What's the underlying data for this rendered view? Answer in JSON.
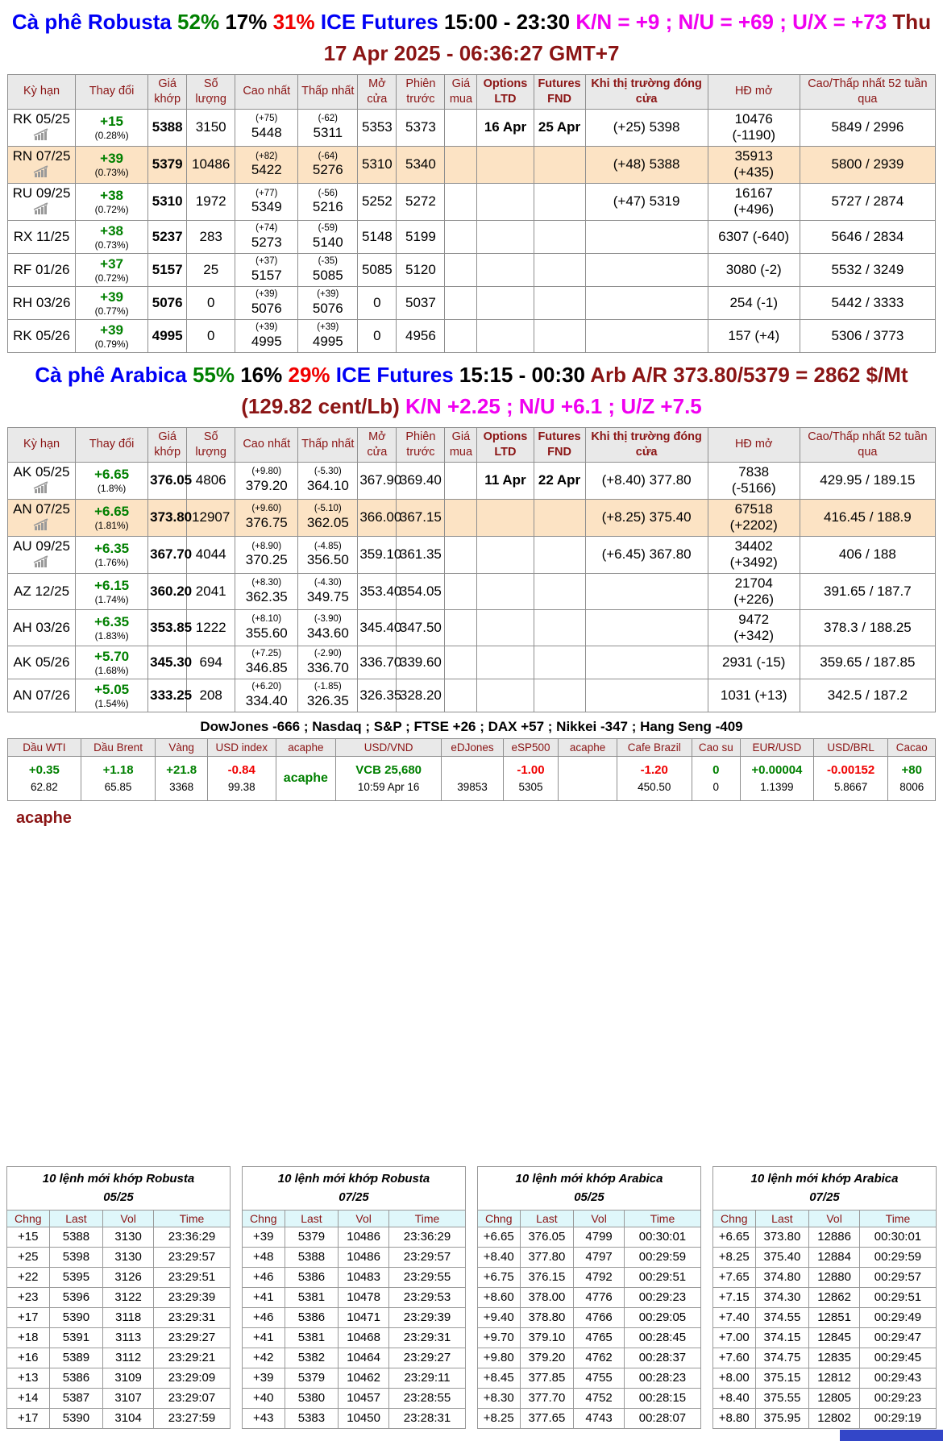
{
  "robusta_header": {
    "segments": [
      {
        "t": "Cà phê Robusta",
        "c": "blue"
      },
      {
        "t": " 52%",
        "c": "green"
      },
      {
        "t": " 17% ",
        "c": "black"
      },
      {
        "t": "31% ",
        "c": "red"
      },
      {
        "t": "ICE Futures",
        "c": "blue"
      },
      {
        "t": " 15:00 - 23:30 ",
        "c": "black"
      },
      {
        "t": "K/N = +9 ; N/U = +69 ; U/X = +73",
        "c": "magenta"
      },
      {
        "t": " Thu 17 Apr 2025 - 06:36:27 GMT+7",
        "c": "darkred"
      }
    ]
  },
  "arabica_header": {
    "segments": [
      {
        "t": "Cà phê Arabica",
        "c": "blue"
      },
      {
        "t": " 55%",
        "c": "green"
      },
      {
        "t": " 16% ",
        "c": "black"
      },
      {
        "t": "29% ",
        "c": "red"
      },
      {
        "t": "ICE Futures",
        "c": "blue"
      },
      {
        "t": " 15:15 - 00:30 ",
        "c": "black"
      },
      {
        "t": "Arb A/R 373.80/5379 = 2862 $/Mt (129.82 cent/Lb)",
        "c": "darkred"
      },
      {
        "t": " K/N +2.25 ; N/U +6.1 ; U/Z +7.5",
        "c": "magenta"
      }
    ]
  },
  "futures_headers": [
    "Kỳ hạn",
    "Thay đổi",
    "Giá khớp",
    "Số lượng",
    "Cao nhất",
    "Thấp nhất",
    "Mở cửa",
    "Phiên trước",
    "Giá mua",
    "Options LTD",
    "Futures FND",
    "Khi thị trường đóng cửa",
    "HĐ mở",
    "Cao/Thấp nhất 52 tuần qua"
  ],
  "robusta": {
    "rows": [
      {
        "m": "RK 05/25",
        "ic": true,
        "chg": "+15",
        "pct": "(0.28%)",
        "last": "5388",
        "vol": "3150",
        "hid": "(+75)",
        "hi": "5448",
        "lod": "(-62)",
        "lo": "5311",
        "op": "5353",
        "pr": "5373",
        "buy": "",
        "oltd": "16 Apr",
        "ffnd": "25 Apr",
        "cls": "(+25) 5398",
        "oi": "10476\n(-1190)",
        "rng": "5849 / 2996",
        "hl": false
      },
      {
        "m": "RN 07/25",
        "ic": true,
        "chg": "+39",
        "pct": "(0.73%)",
        "last": "5379",
        "vol": "10486",
        "hid": "(+82)",
        "hi": "5422",
        "lod": "(-64)",
        "lo": "5276",
        "op": "5310",
        "pr": "5340",
        "buy": "",
        "oltd": "",
        "ffnd": "",
        "cls": "(+48) 5388",
        "oi": "35913\n(+435)",
        "rng": "5800 / 2939",
        "hl": true
      },
      {
        "m": "RU 09/25",
        "ic": true,
        "chg": "+38",
        "pct": "(0.72%)",
        "last": "5310",
        "vol": "1972",
        "hid": "(+77)",
        "hi": "5349",
        "lod": "(-56)",
        "lo": "5216",
        "op": "5252",
        "pr": "5272",
        "buy": "",
        "oltd": "",
        "ffnd": "",
        "cls": "(+47) 5319",
        "oi": "16167\n(+496)",
        "rng": "5727 / 2874",
        "hl": false
      },
      {
        "m": "RX 11/25",
        "ic": false,
        "chg": "+38",
        "pct": "(0.73%)",
        "last": "5237",
        "vol": "283",
        "hid": "(+74)",
        "hi": "5273",
        "lod": "(-59)",
        "lo": "5140",
        "op": "5148",
        "pr": "5199",
        "buy": "",
        "oltd": "",
        "ffnd": "",
        "cls": "",
        "oi": "6307 (-640)",
        "rng": "5646 / 2834",
        "hl": false
      },
      {
        "m": "RF 01/26",
        "ic": false,
        "chg": "+37",
        "pct": "(0.72%)",
        "last": "5157",
        "vol": "25",
        "hid": "(+37)",
        "hi": "5157",
        "lod": "(-35)",
        "lo": "5085",
        "op": "5085",
        "pr": "5120",
        "buy": "",
        "oltd": "",
        "ffnd": "",
        "cls": "",
        "oi": "3080 (-2)",
        "rng": "5532 / 3249",
        "hl": false
      },
      {
        "m": "RH 03/26",
        "ic": false,
        "chg": "+39",
        "pct": "(0.77%)",
        "last": "5076",
        "vol": "0",
        "hid": "(+39)",
        "hi": "5076",
        "lod": "(+39)",
        "lo": "5076",
        "op": "0",
        "pr": "5037",
        "buy": "",
        "oltd": "",
        "ffnd": "",
        "cls": "",
        "oi": "254 (-1)",
        "rng": "5442 / 3333",
        "hl": false
      },
      {
        "m": "RK 05/26",
        "ic": false,
        "chg": "+39",
        "pct": "(0.79%)",
        "last": "4995",
        "vol": "0",
        "hid": "(+39)",
        "hi": "4995",
        "lod": "(+39)",
        "lo": "4995",
        "op": "0",
        "pr": "4956",
        "buy": "",
        "oltd": "",
        "ffnd": "",
        "cls": "",
        "oi": "157 (+4)",
        "rng": "5306 / 3773",
        "hl": false
      }
    ]
  },
  "arabica": {
    "rows": [
      {
        "m": "AK 05/25",
        "ic": true,
        "chg": "+6.65",
        "pct": "(1.8%)",
        "last": "376.05",
        "vol": "4806",
        "hid": "(+9.80)",
        "hi": "379.20",
        "lod": "(-5.30)",
        "lo": "364.10",
        "op": "367.90",
        "pr": "369.40",
        "buy": "",
        "oltd": "11 Apr",
        "ffnd": "22 Apr",
        "cls": "(+8.40) 377.80",
        "oi": "7838\n(-5166)",
        "rng": "429.95 / 189.15",
        "hl": false
      },
      {
        "m": "AN 07/25",
        "ic": true,
        "chg": "+6.65",
        "pct": "(1.81%)",
        "last": "373.80",
        "vol": "12907",
        "hid": "(+9.60)",
        "hi": "376.75",
        "lod": "(-5.10)",
        "lo": "362.05",
        "op": "366.00",
        "pr": "367.15",
        "buy": "",
        "oltd": "",
        "ffnd": "",
        "cls": "(+8.25) 375.40",
        "oi": "67518\n(+2202)",
        "rng": "416.45 / 188.9",
        "hl": true
      },
      {
        "m": "AU 09/25",
        "ic": true,
        "chg": "+6.35",
        "pct": "(1.76%)",
        "last": "367.70",
        "vol": "4044",
        "hid": "(+8.90)",
        "hi": "370.25",
        "lod": "(-4.85)",
        "lo": "356.50",
        "op": "359.10",
        "pr": "361.35",
        "buy": "",
        "oltd": "",
        "ffnd": "",
        "cls": "(+6.45) 367.80",
        "oi": "34402\n(+3492)",
        "rng": "406 / 188",
        "hl": false
      },
      {
        "m": "AZ 12/25",
        "ic": false,
        "chg": "+6.15",
        "pct": "(1.74%)",
        "last": "360.20",
        "vol": "2041",
        "hid": "(+8.30)",
        "hi": "362.35",
        "lod": "(-4.30)",
        "lo": "349.75",
        "op": "353.40",
        "pr": "354.05",
        "buy": "",
        "oltd": "",
        "ffnd": "",
        "cls": "",
        "oi": "21704\n(+226)",
        "rng": "391.65 / 187.7",
        "hl": false
      },
      {
        "m": "AH 03/26",
        "ic": false,
        "chg": "+6.35",
        "pct": "(1.83%)",
        "last": "353.85",
        "vol": "1222",
        "hid": "(+8.10)",
        "hi": "355.60",
        "lod": "(-3.90)",
        "lo": "343.60",
        "op": "345.40",
        "pr": "347.50",
        "buy": "",
        "oltd": "",
        "ffnd": "",
        "cls": "",
        "oi": "9472\n(+342)",
        "rng": "378.3 / 188.25",
        "hl": false
      },
      {
        "m": "AK 05/26",
        "ic": false,
        "chg": "+5.70",
        "pct": "(1.68%)",
        "last": "345.30",
        "vol": "694",
        "hid": "(+7.25)",
        "hi": "346.85",
        "lod": "(-2.90)",
        "lo": "336.70",
        "op": "336.70",
        "pr": "339.60",
        "buy": "",
        "oltd": "",
        "ffnd": "",
        "cls": "",
        "oi": "2931 (-15)",
        "rng": "359.65 / 187.85",
        "hl": false
      },
      {
        "m": "AN 07/26",
        "ic": false,
        "chg": "+5.05",
        "pct": "(1.54%)",
        "last": "333.25",
        "vol": "208",
        "hid": "(+6.20)",
        "hi": "334.40",
        "lod": "(-1.85)",
        "lo": "326.35",
        "op": "326.35",
        "pr": "328.20",
        "buy": "",
        "oltd": "",
        "ffnd": "",
        "cls": "",
        "oi": "1031 (+13)",
        "rng": "342.5 / 187.2",
        "hl": false
      }
    ]
  },
  "indices_line": "DowJones -666 ; Nasdaq ; S&P ; FTSE +26 ; DAX +57 ; Nikkei -347 ; Hang Seng -409",
  "market": {
    "columns": [
      {
        "label": "Dầu WTI",
        "value": "+0.35",
        "c": "g",
        "sub": "62.82"
      },
      {
        "label": "Dầu Brent",
        "value": "+1.18",
        "c": "g",
        "sub": "65.85"
      },
      {
        "label": "Vàng",
        "value": "+21.8",
        "c": "g",
        "sub": "3368"
      },
      {
        "label": "USD index",
        "value": "-0.84",
        "c": "r",
        "sub": "99.38"
      },
      {
        "label": "acaphe",
        "value": "acaphe",
        "c": "g",
        "sub": "",
        "single": true
      },
      {
        "label": "USD/VND",
        "value": "VCB 25,680",
        "c": "g",
        "sub": "10:59 Apr 16"
      },
      {
        "label": "eDJones",
        "value": "",
        "c": "k",
        "sub": "39853"
      },
      {
        "label": "eSP500",
        "value": "-1.00",
        "c": "r",
        "sub": "5305"
      },
      {
        "label": "acaphe",
        "value": "",
        "c": "k",
        "sub": ""
      },
      {
        "label": "Cafe Brazil",
        "value": "-1.20",
        "c": "r",
        "sub": "450.50"
      },
      {
        "label": "Cao su",
        "value": "0",
        "c": "g",
        "sub": "0"
      },
      {
        "label": "EUR/USD",
        "value": "+0.00004",
        "c": "g",
        "sub": "1.1399"
      },
      {
        "label": "USD/BRL",
        "value": "-0.00152",
        "c": "r",
        "sub": "5.8667"
      },
      {
        "label": "Cacao",
        "value": "+80",
        "c": "g",
        "sub": "8006"
      }
    ]
  },
  "acaphe_label": "acaphe",
  "order_headers": [
    "Chng",
    "Last",
    "Vol",
    "Time"
  ],
  "order_tables": [
    {
      "title1": "10 lệnh mới khớp Robusta",
      "title2": "05/25",
      "rows": [
        [
          "+15",
          "5388",
          "3130",
          "23:36:29"
        ],
        [
          "+25",
          "5398",
          "3130",
          "23:29:57"
        ],
        [
          "+22",
          "5395",
          "3126",
          "23:29:51"
        ],
        [
          "+23",
          "5396",
          "3122",
          "23:29:39"
        ],
        [
          "+17",
          "5390",
          "3118",
          "23:29:31"
        ],
        [
          "+18",
          "5391",
          "3113",
          "23:29:27"
        ],
        [
          "+16",
          "5389",
          "3112",
          "23:29:21"
        ],
        [
          "+13",
          "5386",
          "3109",
          "23:29:09"
        ],
        [
          "+14",
          "5387",
          "3107",
          "23:29:07"
        ],
        [
          "+17",
          "5390",
          "3104",
          "23:27:59"
        ]
      ]
    },
    {
      "title1": "10 lệnh mới khớp Robusta",
      "title2": "07/25",
      "rows": [
        [
          "+39",
          "5379",
          "10486",
          "23:36:29"
        ],
        [
          "+48",
          "5388",
          "10486",
          "23:29:57"
        ],
        [
          "+46",
          "5386",
          "10483",
          "23:29:55"
        ],
        [
          "+41",
          "5381",
          "10478",
          "23:29:53"
        ],
        [
          "+46",
          "5386",
          "10471",
          "23:29:39"
        ],
        [
          "+41",
          "5381",
          "10468",
          "23:29:31"
        ],
        [
          "+42",
          "5382",
          "10464",
          "23:29:27"
        ],
        [
          "+39",
          "5379",
          "10462",
          "23:29:11"
        ],
        [
          "+40",
          "5380",
          "10457",
          "23:28:55"
        ],
        [
          "+43",
          "5383",
          "10450",
          "23:28:31"
        ]
      ]
    },
    {
      "title1": "10 lệnh mới khớp Arabica",
      "title2": "05/25",
      "rows": [
        [
          "+6.65",
          "376.05",
          "4799",
          "00:30:01"
        ],
        [
          "+8.40",
          "377.80",
          "4797",
          "00:29:59"
        ],
        [
          "+6.75",
          "376.15",
          "4792",
          "00:29:51"
        ],
        [
          "+8.60",
          "378.00",
          "4776",
          "00:29:23"
        ],
        [
          "+9.40",
          "378.80",
          "4766",
          "00:29:05"
        ],
        [
          "+9.70",
          "379.10",
          "4765",
          "00:28:45"
        ],
        [
          "+9.80",
          "379.20",
          "4762",
          "00:28:37"
        ],
        [
          "+8.45",
          "377.85",
          "4755",
          "00:28:23"
        ],
        [
          "+8.30",
          "377.70",
          "4752",
          "00:28:15"
        ],
        [
          "+8.25",
          "377.65",
          "4743",
          "00:28:07"
        ]
      ]
    },
    {
      "title1": "10 lệnh mới khớp Arabica",
      "title2": "07/25",
      "rows": [
        [
          "+6.65",
          "373.80",
          "12886",
          "00:30:01"
        ],
        [
          "+8.25",
          "375.40",
          "12884",
          "00:29:59"
        ],
        [
          "+7.65",
          "374.80",
          "12880",
          "00:29:57"
        ],
        [
          "+7.15",
          "374.30",
          "12862",
          "00:29:51"
        ],
        [
          "+7.40",
          "374.55",
          "12851",
          "00:29:49"
        ],
        [
          "+7.00",
          "374.15",
          "12845",
          "00:29:47"
        ],
        [
          "+7.60",
          "374.75",
          "12835",
          "00:29:45"
        ],
        [
          "+8.00",
          "375.15",
          "12812",
          "00:29:43"
        ],
        [
          "+8.40",
          "375.55",
          "12805",
          "00:29:23"
        ],
        [
          "+8.80",
          "375.95",
          "12802",
          "00:29:19"
        ]
      ]
    }
  ]
}
